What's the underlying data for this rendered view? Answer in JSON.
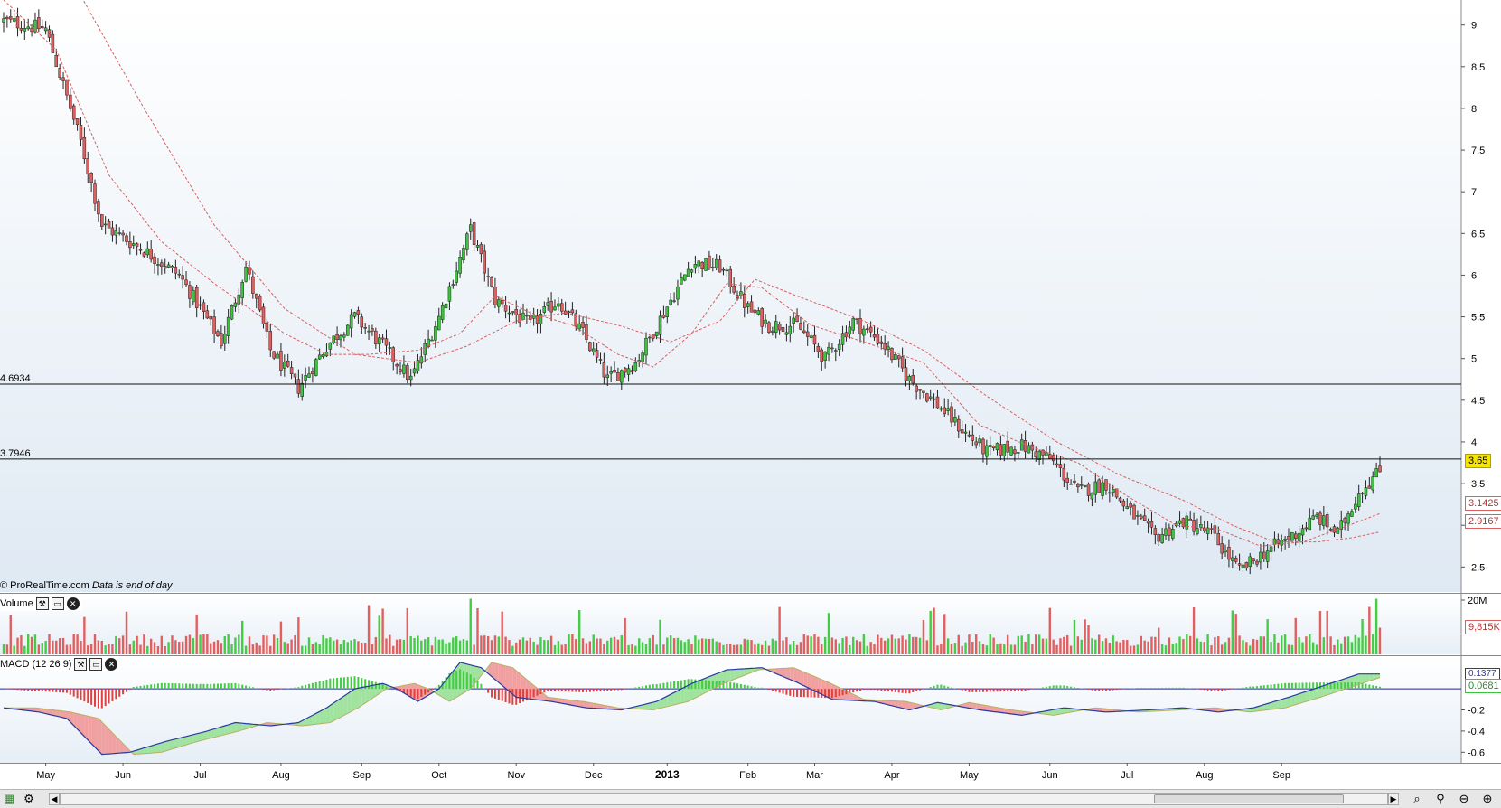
{
  "chart_data": [
    {
      "type": "candlestick",
      "panel": "price",
      "ylim": [
        2.2,
        9.3
      ],
      "y_ticks": [
        "9",
        "8.5",
        "8",
        "7.5",
        "7",
        "6.5",
        "6",
        "5.5",
        "5",
        "4.5",
        "4",
        "3.5",
        "3",
        "2.5"
      ],
      "support_lines": [
        {
          "label": "4.6934",
          "value": 4.6934
        },
        {
          "label": "3.7946",
          "value": 3.7946
        }
      ],
      "last_price": {
        "label": "3.65",
        "value": 3.65
      },
      "moving_averages": [
        {
          "label": "3.1425",
          "value": 3.1425
        },
        {
          "label": "2.9167",
          "value": 2.9167
        }
      ],
      "anchors": [
        [
          0,
          9.05
        ],
        [
          12,
          8.95
        ],
        [
          22,
          7.6
        ],
        [
          28,
          6.6
        ],
        [
          40,
          6.3
        ],
        [
          50,
          6.0
        ],
        [
          62,
          5.2
        ],
        [
          69,
          6.1
        ],
        [
          76,
          5.1
        ],
        [
          84,
          4.65
        ],
        [
          92,
          5.15
        ],
        [
          100,
          5.5
        ],
        [
          108,
          5.15
        ],
        [
          116,
          4.75
        ],
        [
          124,
          5.5
        ],
        [
          133,
          6.55
        ],
        [
          140,
          5.7
        ],
        [
          150,
          5.4
        ],
        [
          158,
          5.7
        ],
        [
          165,
          5.3
        ],
        [
          172,
          4.75
        ],
        [
          180,
          4.95
        ],
        [
          188,
          5.55
        ],
        [
          196,
          6.15
        ],
        [
          204,
          6.1
        ],
        [
          212,
          5.6
        ],
        [
          218,
          5.4
        ],
        [
          226,
          5.4
        ],
        [
          234,
          5.0
        ],
        [
          242,
          5.45
        ],
        [
          250,
          5.2
        ],
        [
          258,
          4.75
        ],
        [
          266,
          4.45
        ],
        [
          274,
          4.1
        ],
        [
          280,
          3.88
        ],
        [
          290,
          3.95
        ],
        [
          298,
          3.8
        ],
        [
          306,
          3.4
        ],
        [
          314,
          3.5
        ],
        [
          320,
          3.2
        ],
        [
          328,
          2.85
        ],
        [
          336,
          3.05
        ],
        [
          344,
          2.9
        ],
        [
          352,
          2.45
        ],
        [
          360,
          2.7
        ],
        [
          368,
          2.9
        ],
        [
          374,
          3.1
        ],
        [
          380,
          2.9
        ],
        [
          386,
          3.4
        ],
        [
          392,
          3.65
        ]
      ],
      "ma_anchors": {
        "fast": [
          [
            0,
            9.3
          ],
          [
            15,
            8.7
          ],
          [
            30,
            7.2
          ],
          [
            45,
            6.4
          ],
          [
            60,
            5.9
          ],
          [
            80,
            5.3
          ],
          [
            92,
            5.05
          ],
          [
            104,
            5.05
          ],
          [
            118,
            5.1
          ],
          [
            130,
            5.3
          ],
          [
            140,
            5.75
          ],
          [
            150,
            5.55
          ],
          [
            162,
            5.4
          ],
          [
            175,
            5.05
          ],
          [
            185,
            4.9
          ],
          [
            196,
            5.3
          ],
          [
            206,
            5.9
          ],
          [
            216,
            5.85
          ],
          [
            230,
            5.4
          ],
          [
            245,
            5.2
          ],
          [
            262,
            4.95
          ],
          [
            278,
            4.2
          ],
          [
            292,
            3.95
          ],
          [
            306,
            3.75
          ],
          [
            320,
            3.35
          ],
          [
            334,
            3.0
          ],
          [
            346,
            2.95
          ],
          [
            358,
            2.75
          ],
          [
            370,
            2.8
          ],
          [
            380,
            2.95
          ],
          [
            392,
            3.14
          ]
        ],
        "slow": [
          [
            0,
            9.8
          ],
          [
            20,
            9.5
          ],
          [
            40,
            8.0
          ],
          [
            60,
            6.6
          ],
          [
            80,
            5.6
          ],
          [
            100,
            5.05
          ],
          [
            118,
            4.95
          ],
          [
            132,
            5.15
          ],
          [
            146,
            5.45
          ],
          [
            160,
            5.55
          ],
          [
            175,
            5.4
          ],
          [
            190,
            5.2
          ],
          [
            204,
            5.45
          ],
          [
            214,
            5.95
          ],
          [
            226,
            5.75
          ],
          [
            245,
            5.45
          ],
          [
            262,
            5.1
          ],
          [
            280,
            4.55
          ],
          [
            300,
            4.0
          ],
          [
            318,
            3.6
          ],
          [
            336,
            3.3
          ],
          [
            350,
            3.0
          ],
          [
            362,
            2.8
          ],
          [
            374,
            2.8
          ],
          [
            384,
            2.85
          ],
          [
            392,
            2.92
          ]
        ]
      },
      "months": [
        {
          "label": "May",
          "x": 12
        },
        {
          "label": "Jun",
          "x": 34
        },
        {
          "label": "Jul",
          "x": 56
        },
        {
          "label": "Aug",
          "x": 79
        },
        {
          "label": "Sep",
          "x": 102
        },
        {
          "label": "Oct",
          "x": 124
        },
        {
          "label": "Nov",
          "x": 146
        },
        {
          "label": "Dec",
          "x": 168
        },
        {
          "label": "2013",
          "x": 189,
          "bold": true
        },
        {
          "label": "Feb",
          "x": 212
        },
        {
          "label": "Mar",
          "x": 231
        },
        {
          "label": "Apr",
          "x": 253
        },
        {
          "label": "May",
          "x": 275
        },
        {
          "label": "Jun",
          "x": 298
        },
        {
          "label": "Jul",
          "x": 320
        },
        {
          "label": "Aug",
          "x": 342
        },
        {
          "label": "Sep",
          "x": 364
        }
      ],
      "bars_count": 393
    },
    {
      "type": "bar",
      "panel": "volume",
      "title": "Volume",
      "y_ticks": [
        "20M"
      ],
      "last_value_label": "9,815K",
      "ylim": [
        0,
        22000000
      ]
    },
    {
      "type": "line",
      "panel": "macd",
      "title": "MACD (12 26 9)",
      "y_ticks": [
        "-0.2",
        "-0.4",
        "-0.6"
      ],
      "ylim": [
        -0.7,
        0.3
      ],
      "value_labels": [
        "0.1377",
        "0.0681"
      ],
      "macd_anchors": [
        [
          0,
          -0.18
        ],
        [
          10,
          -0.22
        ],
        [
          18,
          -0.28
        ],
        [
          28,
          -0.62
        ],
        [
          36,
          -0.6
        ],
        [
          46,
          -0.5
        ],
        [
          58,
          -0.4
        ],
        [
          66,
          -0.32
        ],
        [
          76,
          -0.35
        ],
        [
          84,
          -0.32
        ],
        [
          92,
          -0.18
        ],
        [
          100,
          0.0
        ],
        [
          108,
          0.05
        ],
        [
          112,
          0.0
        ],
        [
          118,
          -0.12
        ],
        [
          124,
          0.0
        ],
        [
          130,
          0.25
        ],
        [
          136,
          0.2
        ],
        [
          146,
          -0.08
        ],
        [
          156,
          -0.12
        ],
        [
          166,
          -0.18
        ],
        [
          176,
          -0.2
        ],
        [
          186,
          -0.12
        ],
        [
          196,
          0.05
        ],
        [
          206,
          0.18
        ],
        [
          216,
          0.2
        ],
        [
          226,
          0.06
        ],
        [
          236,
          -0.1
        ],
        [
          248,
          -0.12
        ],
        [
          258,
          -0.2
        ],
        [
          266,
          -0.13
        ],
        [
          278,
          -0.2
        ],
        [
          290,
          -0.25
        ],
        [
          302,
          -0.18
        ],
        [
          314,
          -0.22
        ],
        [
          326,
          -0.2
        ],
        [
          336,
          -0.18
        ],
        [
          346,
          -0.22
        ],
        [
          356,
          -0.18
        ],
        [
          366,
          -0.08
        ],
        [
          376,
          0.03
        ],
        [
          386,
          0.14
        ],
        [
          392,
          0.14
        ]
      ],
      "signal_lag": 9
    }
  ],
  "panels": {
    "volume_label": "Volume",
    "macd_label": "MACD (12 26 9)"
  },
  "credit": {
    "source": "© ProRealTime.com",
    "note": "Data is end of day"
  },
  "colors": {
    "up": "#3cc43c",
    "down": "#e06060",
    "ma": "#d86060",
    "macd_line": "#2a3aa0",
    "signal_line": "#b8b060",
    "histo_up": "#44cc44",
    "histo_down": "#e04040",
    "grid": "#9aa",
    "bg_top": "#ffffff",
    "bg_bottom": "#dde9f3",
    "last_price_badge": "#f4e400",
    "zero_line": "#2222aa"
  }
}
